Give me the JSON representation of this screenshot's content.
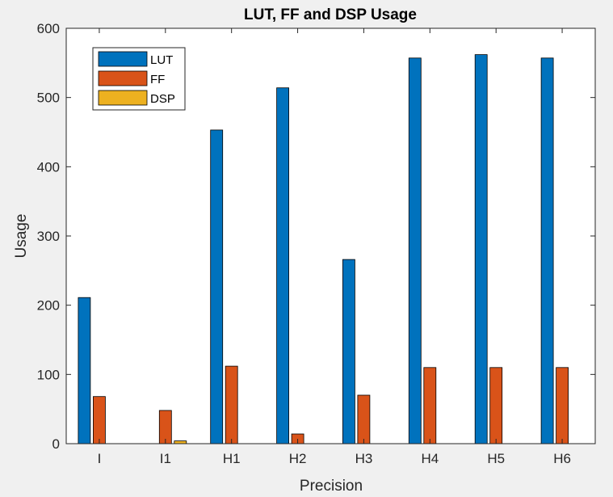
{
  "chart_data": {
    "type": "bar",
    "title": "LUT, FF and DSP Usage",
    "xlabel": "Precision",
    "ylabel": "Usage",
    "categories": [
      "I",
      "I1",
      "H1",
      "H2",
      "H3",
      "H4",
      "H5",
      "H6"
    ],
    "ylim": [
      0,
      600
    ],
    "yticks": [
      0,
      100,
      200,
      300,
      400,
      500,
      600
    ],
    "grid": false,
    "legend_position": "top-left",
    "series": [
      {
        "name": "LUT",
        "color": "#0072BD",
        "values": [
          211,
          0,
          453,
          514,
          266,
          557,
          562,
          557
        ]
      },
      {
        "name": "FF",
        "color": "#D95319",
        "values": [
          68,
          48,
          112,
          14,
          70,
          110,
          110,
          110
        ]
      },
      {
        "name": "DSP",
        "color": "#EDB120",
        "values": [
          0,
          4,
          0,
          0,
          0,
          0,
          0,
          0
        ]
      }
    ]
  }
}
